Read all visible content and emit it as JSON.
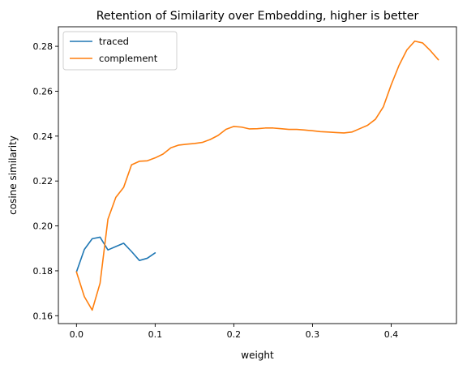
{
  "chart_data": {
    "type": "line",
    "title": "Retention of Similarity over Embedding, higher is better",
    "xlabel": "weight",
    "ylabel": "cosine similarity",
    "xlim": [
      -0.023,
      0.483
    ],
    "ylim": [
      0.1565,
      0.2887
    ],
    "xticks": [
      0.0,
      0.1,
      0.2,
      0.3,
      0.4
    ],
    "xtick_labels": [
      "0.0",
      "0.1",
      "0.2",
      "0.3",
      "0.4"
    ],
    "yticks": [
      0.16,
      0.18,
      0.2,
      0.22,
      0.24,
      0.26,
      0.28
    ],
    "ytick_labels": [
      "0.16",
      "0.18",
      "0.20",
      "0.22",
      "0.24",
      "0.26",
      "0.28"
    ],
    "grid": false,
    "legend_position": "upper-left",
    "series": [
      {
        "name": "traced",
        "color": "#1f77b4",
        "x": [
          0.0,
          0.01,
          0.02,
          0.03,
          0.04,
          0.05,
          0.06,
          0.07,
          0.08,
          0.09,
          0.1
        ],
        "y": [
          0.1795,
          0.1895,
          0.1943,
          0.195,
          0.1893,
          0.1908,
          0.1923,
          0.1886,
          0.1846,
          0.1856,
          0.188
        ]
      },
      {
        "name": "complement",
        "color": "#ff7f0e",
        "x": [
          0.0,
          0.01,
          0.02,
          0.03,
          0.04,
          0.05,
          0.06,
          0.07,
          0.08,
          0.09,
          0.1,
          0.11,
          0.12,
          0.13,
          0.14,
          0.15,
          0.16,
          0.17,
          0.18,
          0.19,
          0.2,
          0.21,
          0.22,
          0.23,
          0.24,
          0.25,
          0.26,
          0.27,
          0.28,
          0.29,
          0.3,
          0.31,
          0.32,
          0.33,
          0.34,
          0.35,
          0.36,
          0.37,
          0.38,
          0.39,
          0.4,
          0.41,
          0.42,
          0.43,
          0.44,
          0.45,
          0.46
        ],
        "y": [
          0.1795,
          0.1685,
          0.1625,
          0.1745,
          0.203,
          0.2127,
          0.2172,
          0.2272,
          0.2288,
          0.229,
          0.2303,
          0.232,
          0.2348,
          0.236,
          0.2364,
          0.2367,
          0.2372,
          0.2385,
          0.2403,
          0.243,
          0.2443,
          0.244,
          0.2432,
          0.2433,
          0.2436,
          0.2436,
          0.2433,
          0.243,
          0.243,
          0.2427,
          0.2424,
          0.242,
          0.2418,
          0.2416,
          0.2414,
          0.2418,
          0.2433,
          0.2448,
          0.2475,
          0.253,
          0.2628,
          0.2715,
          0.2784,
          0.2823,
          0.2815,
          0.278,
          0.274
        ]
      }
    ]
  }
}
